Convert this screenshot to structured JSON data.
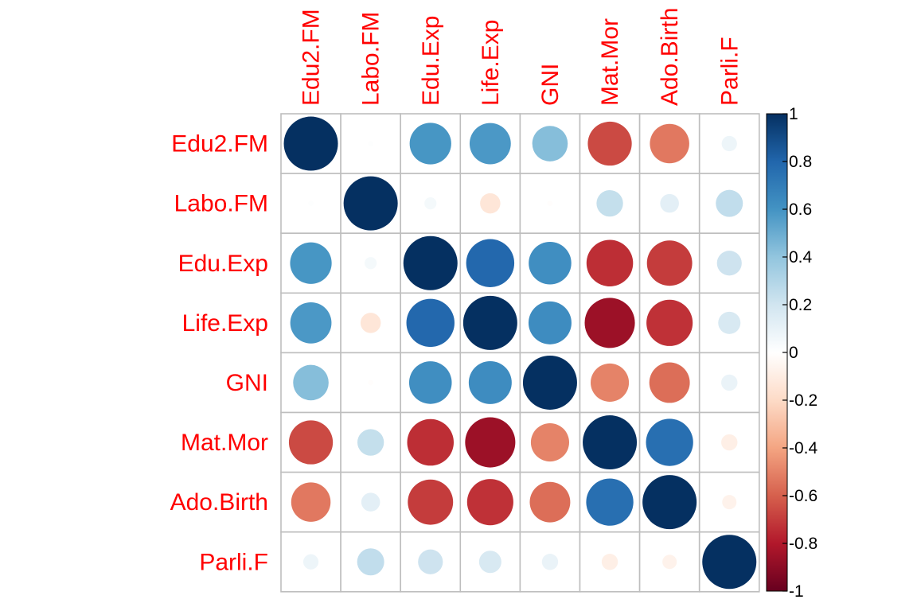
{
  "chart_data": {
    "type": "heatmap",
    "variables": [
      "Edu2.FM",
      "Labo.FM",
      "Edu.Exp",
      "Life.Exp",
      "GNI",
      "Mat.Mor",
      "Ado.Birth",
      "Parli.F"
    ],
    "matrix": [
      [
        1.0,
        0.01,
        0.59,
        0.58,
        0.43,
        -0.66,
        -0.53,
        0.08
      ],
      [
        0.01,
        1.0,
        0.05,
        -0.14,
        -0.01,
        0.24,
        0.12,
        0.25
      ],
      [
        0.59,
        0.05,
        1.0,
        0.79,
        0.62,
        -0.74,
        -0.7,
        0.21
      ],
      [
        0.58,
        -0.14,
        0.79,
        1.0,
        0.63,
        -0.86,
        -0.73,
        0.17
      ],
      [
        0.43,
        -0.01,
        0.62,
        0.63,
        1.0,
        -0.5,
        -0.56,
        0.09
      ],
      [
        -0.66,
        0.24,
        -0.74,
        -0.86,
        -0.5,
        1.0,
        0.76,
        -0.09
      ],
      [
        -0.53,
        0.12,
        -0.7,
        -0.73,
        -0.56,
        0.76,
        1.0,
        -0.07
      ],
      [
        0.08,
        0.25,
        0.21,
        0.17,
        0.09,
        -0.09,
        -0.07,
        1.0
      ]
    ],
    "color_scale": {
      "range": [
        -1,
        1
      ],
      "ticks": [
        "1",
        "0.8",
        "0.6",
        "0.4",
        "0.2",
        "0",
        "-0.2",
        "-0.4",
        "-0.6",
        "-0.8",
        "-1"
      ],
      "stops": [
        "#67001F",
        "#B2182B",
        "#D6604D",
        "#F4A582",
        "#FDDBC7",
        "#FFFFFF",
        "#D1E5F0",
        "#92C5DE",
        "#4393C3",
        "#2166AC",
        "#053061"
      ]
    },
    "label_color": "#FF0000",
    "grid_color": "#BEBEBE"
  }
}
